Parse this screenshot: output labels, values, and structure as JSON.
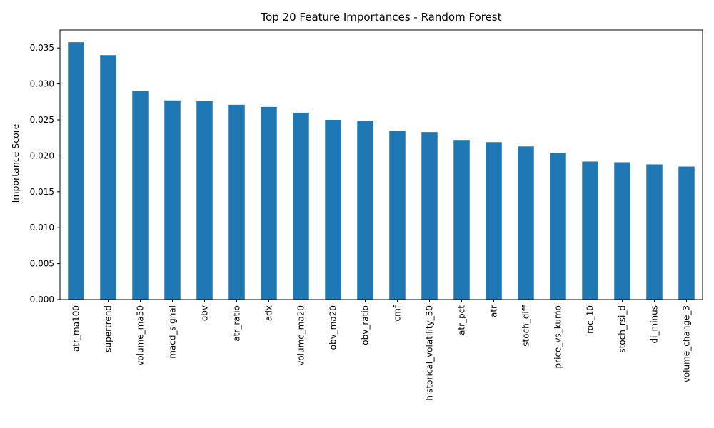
{
  "chart_data": {
    "type": "bar",
    "title": "Top 20 Feature Importances - Random Forest",
    "xlabel": "",
    "ylabel": "Importance Score",
    "categories": [
      "atr_ma100",
      "supertrend",
      "volume_ma50",
      "macd_signal",
      "obv",
      "atr_ratio",
      "adx",
      "volume_ma20",
      "obv_ma20",
      "obv_ratio",
      "cmf",
      "historical_volatility_30",
      "atr_pct",
      "atr",
      "stoch_diff",
      "price_vs_kumo",
      "roc_10",
      "stoch_rsi_d",
      "di_minus",
      "volume_change_3"
    ],
    "values": [
      0.0358,
      0.034,
      0.029,
      0.0277,
      0.0276,
      0.0271,
      0.0268,
      0.026,
      0.025,
      0.0249,
      0.0235,
      0.0233,
      0.0222,
      0.0219,
      0.0213,
      0.0204,
      0.0192,
      0.0191,
      0.0188,
      0.0185
    ],
    "yticks": [
      "0.000",
      "0.005",
      "0.010",
      "0.015",
      "0.020",
      "0.025",
      "0.030",
      "0.035"
    ],
    "ylim": [
      0,
      0.0375
    ],
    "bar_color": "#1f77b4",
    "grid": false,
    "legend": "none"
  }
}
